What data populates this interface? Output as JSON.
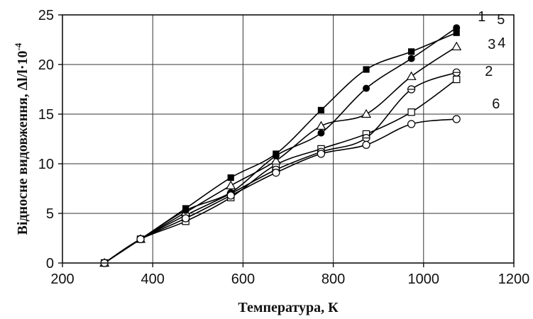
{
  "chart_data": {
    "type": "line",
    "title": "",
    "xlabel": "Температура, К",
    "ylabel": "Відносне видовження, Δl/l·10",
    "ylabel_exponent": "-4",
    "xlim": [
      200,
      1200
    ],
    "ylim": [
      0,
      25
    ],
    "xticks": [
      200,
      400,
      600,
      800,
      1000,
      1200
    ],
    "yticks": [
      0,
      5,
      10,
      15,
      20,
      25
    ],
    "grid": true,
    "legend": "none",
    "series": [
      {
        "name": "1",
        "marker": "filled-square",
        "x": [
          293,
          373,
          473,
          573,
          673,
          773,
          873,
          973,
          1073
        ],
        "y": [
          0,
          2.4,
          5.5,
          8.6,
          11.0,
          15.4,
          19.5,
          21.3,
          23.2
        ]
      },
      {
        "name": "2",
        "marker": "open-square",
        "x": [
          293,
          373,
          473,
          573,
          673,
          773,
          873,
          973,
          1073
        ],
        "y": [
          0,
          2.4,
          4.2,
          6.6,
          9.9,
          11.5,
          13.0,
          15.2,
          18.5
        ]
      },
      {
        "name": "3",
        "marker": "open-circle-dash",
        "x": [
          293,
          373,
          473,
          573,
          673,
          773,
          873,
          973,
          1073
        ],
        "y": [
          0,
          2.4,
          4.8,
          7.0,
          9.4,
          11.2,
          12.6,
          17.5,
          19.2
        ]
      },
      {
        "name": "4",
        "marker": "open-triangle",
        "x": [
          293,
          373,
          473,
          573,
          673,
          773,
          873,
          973,
          1073
        ],
        "y": [
          0,
          2.4,
          5.1,
          7.8,
          10.3,
          13.8,
          15.0,
          18.8,
          21.8
        ]
      },
      {
        "name": "5",
        "marker": "filled-circle",
        "x": [
          293,
          373,
          473,
          573,
          673,
          773,
          873,
          973,
          1073
        ],
        "y": [
          0,
          2.4,
          5.3,
          7.1,
          10.8,
          13.1,
          17.6,
          20.6,
          23.7
        ]
      },
      {
        "name": "6",
        "marker": "open-circle",
        "x": [
          293,
          373,
          473,
          573,
          673,
          773,
          873,
          973,
          1073
        ],
        "y": [
          0,
          2.4,
          4.5,
          6.8,
          9.1,
          11.0,
          11.9,
          14.0,
          14.5
        ]
      }
    ]
  }
}
